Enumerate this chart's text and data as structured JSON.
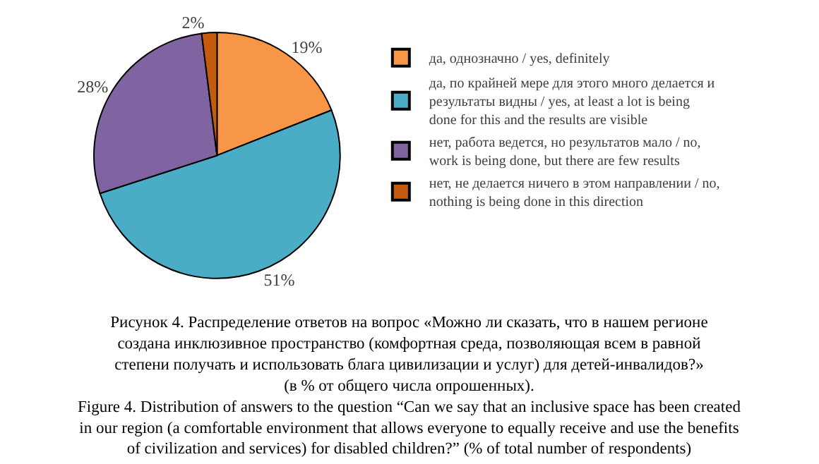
{
  "chart_data": {
    "type": "pie",
    "categories": [
      "да, однозначно / yes, definitely",
      "да, по крайней мере для этого много делается и результаты видны / yes, at least a lot is being done for this and the results are visible",
      "нет, работа ведется, но результатов мало / no, work is being done, but there are few results",
      "нет, не делается ничего в этом направлении / no, nothing is being done in this direction"
    ],
    "values": [
      19,
      51,
      28,
      2
    ],
    "value_labels": [
      "19%",
      "51%",
      "28%",
      "2%"
    ],
    "colors": [
      "#f79646",
      "#4bacc6",
      "#8064a2",
      "#c55a11"
    ],
    "legend": "right",
    "annotations": [
      "Рисунок 4. Распределение ответов на вопрос «Можно ли сказать, что в нашем регионе создана инклюзивное пространство (комфортная среда, позволяющая всем в равной степени получать и использовать блага цивилизации и услуг) для детей-инвалидов?» (в % от общего числа опрошенных).",
      "Figure 4. Distribution of answers to the question “Can we say that an inclusive space has been created in our region (a comfortable environment that allows everyone to equally receive and use the benefits of civilization and services) for disabled children?” (% of total number of respondents)"
    ]
  }
}
